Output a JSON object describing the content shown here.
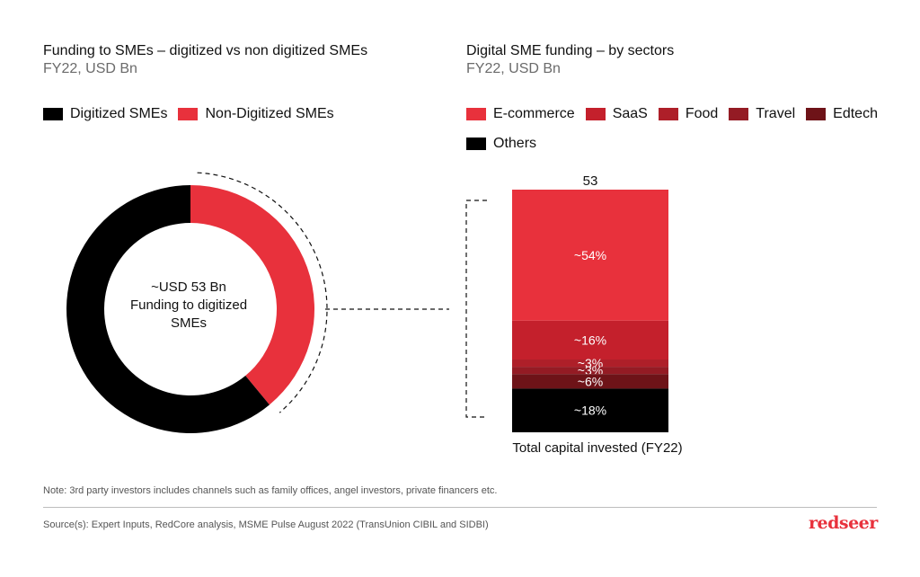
{
  "left_panel": {
    "title": "Funding to SMEs – digitized vs non digitized SMEs",
    "subtitle": "FY22, USD Bn",
    "legend": [
      {
        "label": "Digitized SMEs",
        "color": "#000000"
      },
      {
        "label": "Non-Digitized SMEs",
        "color": "#e8313c"
      }
    ],
    "center_label": [
      "~USD 53 Bn",
      "Funding to digitized",
      "SMEs"
    ]
  },
  "right_panel": {
    "title": "Digital SME funding – by sectors",
    "subtitle": "FY22, USD Bn",
    "legend": [
      {
        "label": "E-commerce",
        "color": "#e8313c"
      },
      {
        "label": "SaaS",
        "color": "#c4202c"
      },
      {
        "label": "Food",
        "color": "#ae1f29"
      },
      {
        "label": "Travel",
        "color": "#941b24"
      },
      {
        "label": "Edtech",
        "color": "#6e1318"
      },
      {
        "label": "Others",
        "color": "#000000"
      }
    ],
    "caption": "Total capital invested (FY22)"
  },
  "chart_data": [
    {
      "type": "pie",
      "donut": true,
      "slices": [
        {
          "name": "Digitized SMEs",
          "share": 0.61,
          "color": "#000000"
        },
        {
          "name": "Non-Digitized SMEs",
          "share": 0.39,
          "color": "#e8313c"
        }
      ]
    },
    {
      "type": "bar",
      "stacked": true,
      "categories": [
        "Total capital invested (FY22)"
      ],
      "total": 53,
      "total_label": "53",
      "ylim": [
        0,
        53
      ],
      "series": [
        {
          "name": "E-commerce",
          "share": 54,
          "label": "~54%",
          "color": "#e8313c"
        },
        {
          "name": "SaaS",
          "share": 16,
          "label": "~16%",
          "color": "#c4202c"
        },
        {
          "name": "Food",
          "share": 3,
          "label": "~3%",
          "color": "#ae1f29"
        },
        {
          "name": "Travel",
          "share": 3,
          "label": "~3%",
          "color": "#941b24"
        },
        {
          "name": "Edtech",
          "share": 6,
          "label": "~6%",
          "color": "#6e1318"
        },
        {
          "name": "Others",
          "share": 18,
          "label": "~18%",
          "color": "#000000"
        }
      ]
    }
  ],
  "footer": {
    "note": "Note: 3rd party investors includes channels such as family offices, angel investors, private financers etc.",
    "source": "Source(s): Expert Inputs, RedCore analysis, MSME Pulse August 2022 (TransUnion CIBIL and SIDBI)",
    "brand": "redseer"
  }
}
